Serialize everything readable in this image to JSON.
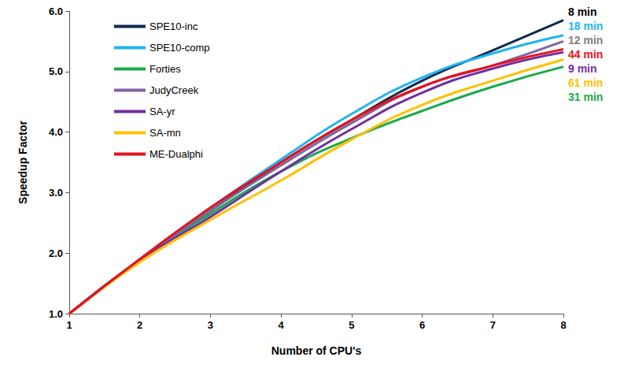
{
  "chart_data": {
    "type": "line",
    "x_label": "Number of CPU's",
    "y_label": "Speedup Factor",
    "x": [
      1,
      2,
      3,
      4,
      5,
      6,
      7,
      8
    ],
    "series": [
      {
        "name": "SPE10-inc",
        "color": "#0f2a52",
        "values": [
          1.0,
          1.9,
          2.7,
          3.5,
          4.2,
          4.85,
          5.35,
          5.85
        ]
      },
      {
        "name": "SPE10-comp",
        "color": "#1fb4ef",
        "values": [
          1.0,
          1.9,
          2.75,
          3.55,
          4.3,
          4.9,
          5.3,
          5.6
        ]
      },
      {
        "name": "Forties",
        "color": "#1aaa4a",
        "values": [
          1.0,
          1.88,
          2.65,
          3.35,
          3.9,
          4.35,
          4.75,
          5.08
        ]
      },
      {
        "name": "JudyCreek",
        "color": "#8064a2",
        "values": [
          1.0,
          1.88,
          2.7,
          3.45,
          4.15,
          4.75,
          5.1,
          5.5
        ]
      },
      {
        "name": "SA-yr",
        "color": "#7030a0",
        "values": [
          1.0,
          1.88,
          2.6,
          3.35,
          4.05,
          4.65,
          5.05,
          5.32
        ]
      },
      {
        "name": "SA-mn",
        "color": "#ffc000",
        "values": [
          1.0,
          1.85,
          2.55,
          3.2,
          3.88,
          4.45,
          4.85,
          5.2
        ]
      },
      {
        "name": "ME-Dualphi",
        "color": "#e8121b",
        "values": [
          1.0,
          1.9,
          2.75,
          3.5,
          4.2,
          4.75,
          5.1,
          5.37
        ]
      }
    ],
    "annotations": [
      {
        "text": "8 min",
        "color": "#000000"
      },
      {
        "text": "18 min",
        "color": "#1fb4ef"
      },
      {
        "text": "12 min",
        "color": "#808080"
      },
      {
        "text": "44 min",
        "color": "#e8121b"
      },
      {
        "text": "9 min",
        "color": "#7030a0"
      },
      {
        "text": "61 min",
        "color": "#ffc000"
      },
      {
        "text": "31 min",
        "color": "#1aaa4a"
      }
    ],
    "xlim": [
      1,
      8
    ],
    "xticks": [
      1,
      2,
      3,
      4,
      5,
      6,
      7,
      8
    ],
    "ylim": [
      1,
      6
    ],
    "yticks": [
      {
        "value": 1,
        "label": "1.0"
      },
      {
        "value": 2,
        "label": "2.0"
      },
      {
        "value": 3,
        "label": "3.0"
      },
      {
        "value": 4,
        "label": "4.0"
      },
      {
        "value": 5,
        "label": "5.0"
      },
      {
        "value": 6,
        "label": "6.0"
      }
    ],
    "grid": false,
    "legend": "upper left",
    "marker": "none",
    "line_style": "solid"
  }
}
